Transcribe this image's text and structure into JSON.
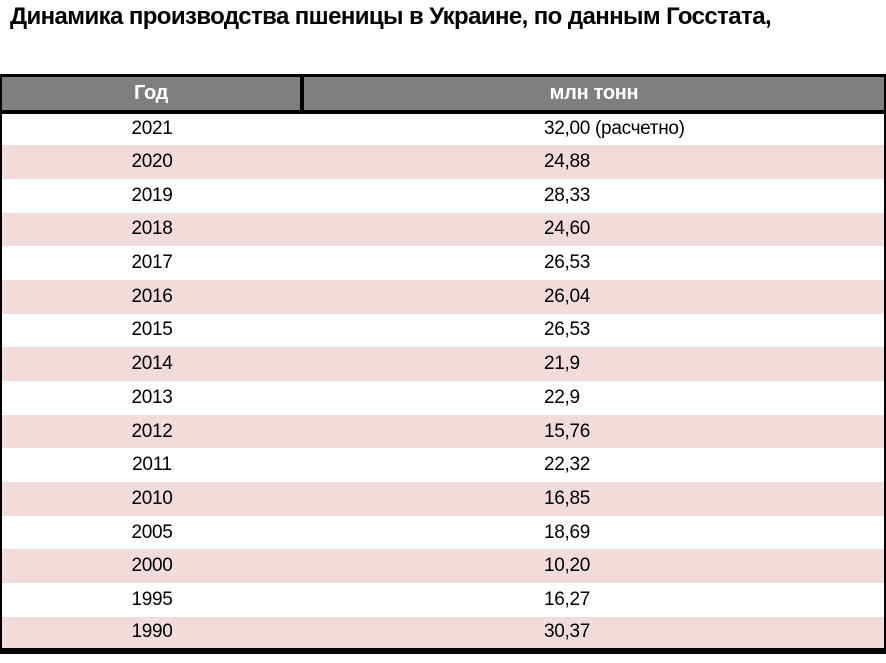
{
  "title": "Динамика производства пшеницы в Украине, по данным Госстата,",
  "table": {
    "headers": {
      "year": "Год",
      "value": "млн тонн"
    },
    "rows": [
      {
        "year": "2021",
        "value": "32,00 (расчетно)"
      },
      {
        "year": "2020",
        "value": "24,88"
      },
      {
        "year": "2019",
        "value": "28,33"
      },
      {
        "year": "2018",
        "value": "24,60"
      },
      {
        "year": "2017",
        "value": "26,53"
      },
      {
        "year": "2016",
        "value": "26,04"
      },
      {
        "year": "2015",
        "value": "26,53"
      },
      {
        "year": "2014",
        "value": "21,9"
      },
      {
        "year": "2013",
        "value": "22,9"
      },
      {
        "year": "2012",
        "value": "15,76"
      },
      {
        "year": "2011",
        "value": "22,32"
      },
      {
        "year": "2010",
        "value": "16,85"
      },
      {
        "year": "2005",
        "value": "18,69"
      },
      {
        "year": "2000",
        "value": "10,20"
      },
      {
        "year": "1995",
        "value": "16,27"
      },
      {
        "year": "1990",
        "value": "30,37"
      }
    ]
  },
  "colors": {
    "header_bg": "#7f7f7f",
    "header_text": "#ffffff",
    "alt_row_bg": "#f2dcdb",
    "row_bg": "#ffffff",
    "border": "#000000",
    "title_text": "#000000"
  },
  "chart_data": {
    "type": "table",
    "title": "Динамика производства пшеницы в Украине, по данным Госстата,",
    "columns": [
      "Год",
      "млн тонн"
    ],
    "categories": [
      "2021",
      "2020",
      "2019",
      "2018",
      "2017",
      "2016",
      "2015",
      "2014",
      "2013",
      "2012",
      "2011",
      "2010",
      "2005",
      "2000",
      "1995",
      "1990"
    ],
    "values": [
      32.0,
      24.88,
      28.33,
      24.6,
      26.53,
      26.04,
      26.53,
      21.9,
      22.9,
      15.76,
      22.32,
      16.85,
      18.69,
      10.2,
      16.27,
      30.37
    ],
    "annotations": {
      "2021": "расчетно"
    },
    "value_unit": "млн тонн"
  }
}
